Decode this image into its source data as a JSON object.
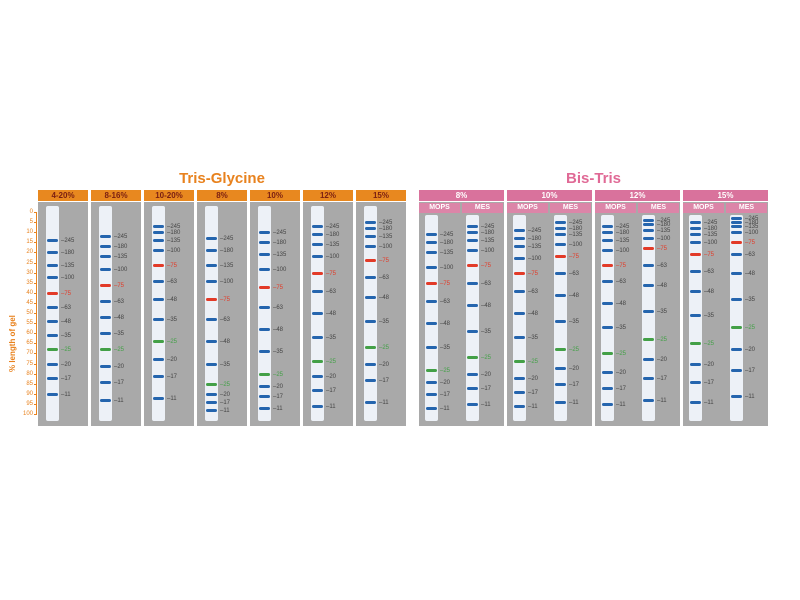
{
  "titles": {
    "left": "Tris-Glycine",
    "right": "Bis-Tris"
  },
  "y_axis": {
    "label": "% length of gel",
    "ticks": [
      0,
      5,
      10,
      15,
      20,
      25,
      30,
      35,
      40,
      45,
      50,
      55,
      60,
      65,
      70,
      75,
      80,
      85,
      90,
      95,
      100
    ],
    "color": "#e8821e"
  },
  "colors": {
    "tg_header_bg": "#e8881f",
    "tg_header_text": "#7a1f12",
    "bt_header_bg": "#d9729c",
    "bt_sub_bg": "#dc85a8",
    "column_bg": "#a9a9a9",
    "lane_bg": "#edf1f7",
    "band_blue": "#2565ae",
    "band_red": "#e23a28",
    "band_green": "#43a047",
    "label_default": "#444444"
  },
  "ladder": {
    "name": "prestained-protein-ladder",
    "bands": [
      {
        "mw": "245",
        "color": "blue"
      },
      {
        "mw": "180",
        "color": "blue"
      },
      {
        "mw": "135",
        "color": "blue"
      },
      {
        "mw": "100",
        "color": "blue"
      },
      {
        "mw": "75",
        "color": "red"
      },
      {
        "mw": "63",
        "color": "blue"
      },
      {
        "mw": "48",
        "color": "blue"
      },
      {
        "mw": "35",
        "color": "blue"
      },
      {
        "mw": "25",
        "color": "green"
      },
      {
        "mw": "20",
        "color": "blue"
      },
      {
        "mw": "17",
        "color": "blue"
      },
      {
        "mw": "11",
        "color": "blue"
      }
    ]
  },
  "chart_data": {
    "type": "gel-migration",
    "title_left": "Tris-Glycine",
    "title_right": "Bis-Tris",
    "ylabel": "% length of gel",
    "y_range": [
      0,
      100
    ],
    "band_mws": [
      "245",
      "180",
      "135",
      "100",
      "75",
      "63",
      "48",
      "35",
      "25",
      "20",
      "17",
      "11"
    ],
    "groups": [
      {
        "name": "Tris-Glycine",
        "columns": [
          {
            "header": "4-20%",
            "lanes": [
              {
                "buffer": "",
                "positions": [
                  14,
                  20,
                  26,
                  32,
                  40,
                  47,
                  54,
                  61,
                  68,
                  75,
                  82,
                  90
                ]
              }
            ]
          },
          {
            "header": "8-16%",
            "lanes": [
              {
                "buffer": "",
                "positions": [
                  12,
                  17,
                  22,
                  28,
                  36,
                  44,
                  52,
                  60,
                  68,
                  76,
                  84,
                  93
                ]
              }
            ]
          },
          {
            "header": "10-20%",
            "lanes": [
              {
                "buffer": "",
                "positions": [
                  7,
                  10,
                  14,
                  19,
                  26,
                  34,
                  43,
                  53,
                  64,
                  73,
                  81,
                  92
                ]
              }
            ]
          },
          {
            "header": "8%",
            "lanes": [
              {
                "buffer": "",
                "positions": [
                  13,
                  19,
                  26,
                  34,
                  43,
                  53,
                  64,
                  75,
                  85,
                  90,
                  94,
                  98
                ]
              }
            ]
          },
          {
            "header": "10%",
            "lanes": [
              {
                "buffer": "",
                "positions": [
                  10,
                  15,
                  21,
                  28,
                  37,
                  47,
                  58,
                  69,
                  80,
                  86,
                  91,
                  97
                ]
              }
            ]
          },
          {
            "header": "12%",
            "lanes": [
              {
                "buffer": "",
                "positions": [
                  7,
                  11,
                  16,
                  22,
                  30,
                  39,
                  50,
                  62,
                  74,
                  81,
                  88,
                  96
                ]
              }
            ]
          },
          {
            "header": "15%",
            "lanes": [
              {
                "buffer": "",
                "positions": [
                  5,
                  8,
                  12,
                  17,
                  24,
                  32,
                  42,
                  54,
                  67,
                  75,
                  83,
                  94
                ]
              }
            ]
          }
        ]
      },
      {
        "name": "Bis-Tris",
        "columns": [
          {
            "header": "8%",
            "lanes": [
              {
                "buffer": "MOPS",
                "positions": [
                  11,
                  15,
                  20,
                  27,
                  35,
                  44,
                  55,
                  67,
                  78,
                  84,
                  90,
                  97
                ]
              },
              {
                "buffer": "MES",
                "positions": [
                  7,
                  10,
                  14,
                  19,
                  26,
                  35,
                  46,
                  59,
                  72,
                  80,
                  87,
                  95
                ]
              }
            ]
          },
          {
            "header": "10%",
            "lanes": [
              {
                "buffer": "MOPS",
                "positions": [
                  9,
                  13,
                  17,
                  23,
                  30,
                  39,
                  50,
                  62,
                  74,
                  82,
                  89,
                  96
                ]
              },
              {
                "buffer": "MES",
                "positions": [
                  5,
                  8,
                  11,
                  16,
                  22,
                  30,
                  41,
                  54,
                  68,
                  77,
                  85,
                  94
                ]
              }
            ]
          },
          {
            "header": "12%",
            "lanes": [
              {
                "buffer": "MOPS",
                "positions": [
                  7,
                  10,
                  14,
                  19,
                  26,
                  34,
                  45,
                  57,
                  70,
                  79,
                  87,
                  95
                ]
              },
              {
                "buffer": "MES",
                "positions": [
                  4,
                  6,
                  9,
                  13,
                  18,
                  26,
                  36,
                  49,
                  63,
                  73,
                  82,
                  93
                ]
              }
            ]
          },
          {
            "header": "15%",
            "lanes": [
              {
                "buffer": "MOPS",
                "positions": [
                  5,
                  8,
                  11,
                  15,
                  21,
                  29,
                  39,
                  51,
                  65,
                  75,
                  84,
                  94
                ]
              },
              {
                "buffer": "MES",
                "positions": [
                  3,
                  5,
                  7,
                  10,
                  15,
                  21,
                  30,
                  43,
                  57,
                  68,
                  78,
                  91
                ]
              }
            ]
          }
        ]
      }
    ]
  }
}
